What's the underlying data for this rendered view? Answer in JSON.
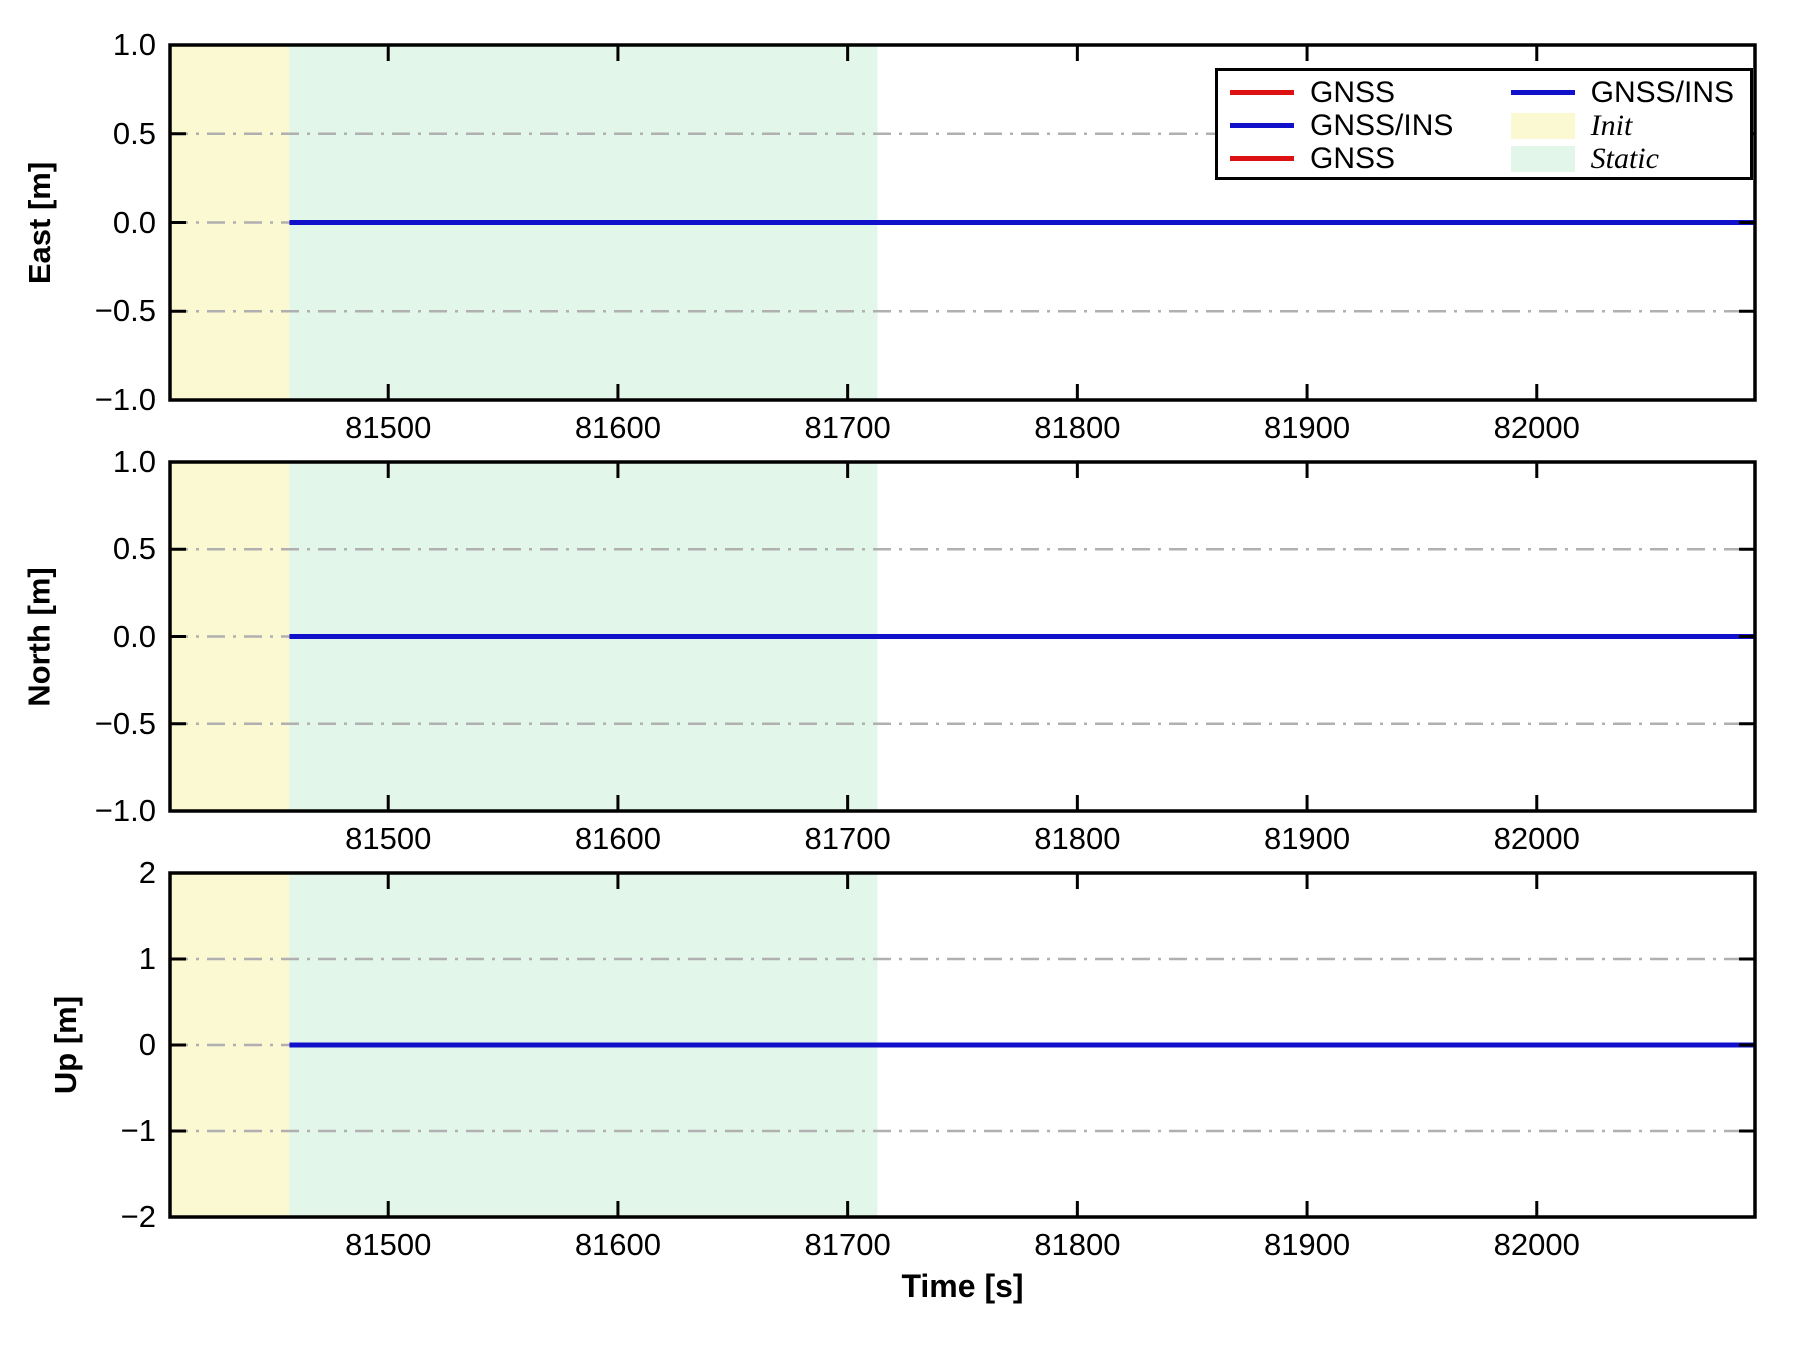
{
  "colors": {
    "background": "#ffffff",
    "axis": "#000000",
    "grid": "#b0b0b0",
    "gnss": "#dd1111",
    "gnss_ins": "#1111cc",
    "init_region": "#fbf9d2",
    "static_region": "#e3f6ea"
  },
  "chart_data": {
    "type": "line",
    "xlabel": "Time [s]",
    "xlim": [
      81405,
      82095
    ],
    "xticks": [
      81500,
      81600,
      81700,
      81800,
      81900,
      82000
    ],
    "xtick_labels": [
      "81500",
      "81600",
      "81700",
      "81800",
      "81900",
      "82000"
    ],
    "grid": "dash-dot horizontal at interior y ticks",
    "regions": [
      {
        "name": "Init",
        "from": 81405,
        "to": 81457,
        "color": "#fbf9d2"
      },
      {
        "name": "Static",
        "from": 81457,
        "to": 81713,
        "color": "#e3f6ea"
      }
    ],
    "series": [
      {
        "name": "GNSS",
        "color": "#dd1111",
        "x_start": 81457,
        "x_end": 82095,
        "value": 0
      },
      {
        "name": "GNSS/INS",
        "color": "#1111cc",
        "x_start": 81457,
        "x_end": 82095,
        "value": 0
      }
    ],
    "subplots": [
      {
        "name": "east",
        "ylabel": "East [m]",
        "ylim": [
          -1.0,
          1.0
        ],
        "yticks": [
          -1.0,
          -0.5,
          0.0,
          0.5,
          1.0
        ],
        "ytick_labels": [
          "−1.0",
          "−0.5",
          "0.0",
          "0.5",
          "1.0"
        ]
      },
      {
        "name": "north",
        "ylabel": "North [m]",
        "ylim": [
          -1.0,
          1.0
        ],
        "yticks": [
          -1.0,
          -0.5,
          0.0,
          0.5,
          1.0
        ],
        "ytick_labels": [
          "−1.0",
          "−0.5",
          "0.0",
          "0.5",
          "1.0"
        ]
      },
      {
        "name": "up",
        "ylabel": "Up [m]",
        "ylim": [
          -2,
          2
        ],
        "yticks": [
          -2,
          -1,
          0,
          1,
          2
        ],
        "ytick_labels": [
          "−2",
          "−1",
          "0",
          "1",
          "2"
        ]
      }
    ]
  },
  "legend": {
    "columns": [
      [
        {
          "swatch": "line",
          "color": "#dd1111",
          "label": "GNSS",
          "italic": false
        },
        {
          "swatch": "line",
          "color": "#1111cc",
          "label": "GNSS/INS",
          "italic": false
        },
        {
          "swatch": "line",
          "color": "#dd1111",
          "label": "GNSS",
          "italic": false
        }
      ],
      [
        {
          "swatch": "line",
          "color": "#1111cc",
          "label": "GNSS/INS",
          "italic": false
        },
        {
          "swatch": "patch",
          "color": "#fbf9d2",
          "label": "Init",
          "italic": true
        },
        {
          "swatch": "patch",
          "color": "#e3f6ea",
          "label": "Static",
          "italic": true
        }
      ]
    ]
  }
}
